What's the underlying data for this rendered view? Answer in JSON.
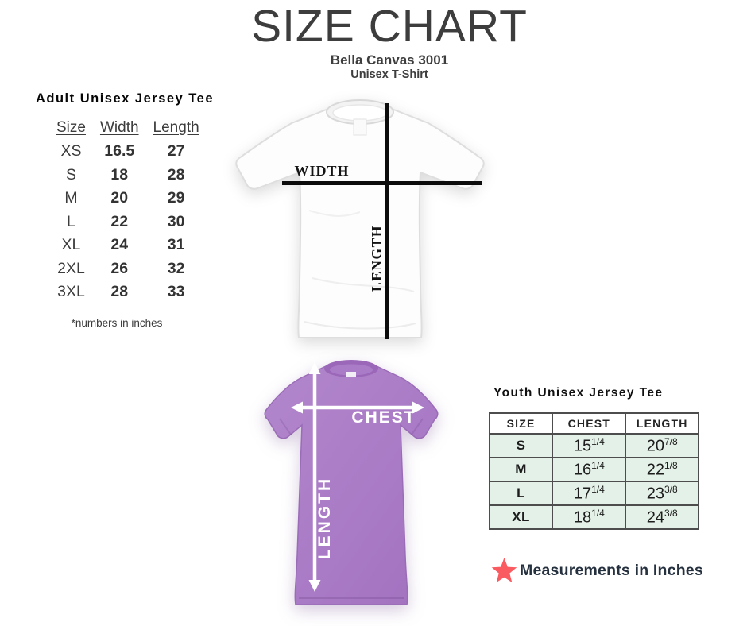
{
  "header": {
    "title": "SIZE CHART",
    "subtitle_line1": "Bella Canvas 3001",
    "subtitle_line2": "Unisex T-Shirt"
  },
  "adult_section": {
    "heading": "Adult Unisex Jersey Tee",
    "headers": [
      "Size",
      "Width",
      "Length"
    ],
    "rows": [
      {
        "size": "XS",
        "width": "16.5",
        "length": "27"
      },
      {
        "size": "S",
        "width": "18",
        "length": "28"
      },
      {
        "size": "M",
        "width": "20",
        "length": "29"
      },
      {
        "size": "L",
        "width": "22",
        "length": "30"
      },
      {
        "size": "XL",
        "width": "24",
        "length": "31"
      },
      {
        "size": "2XL",
        "width": "26",
        "length": "32"
      },
      {
        "size": "3XL",
        "width": "28",
        "length": "33"
      }
    ],
    "footnote": "*numbers in inches"
  },
  "adult_diagram": {
    "shirt": "white-adult-tee",
    "width_label": "WIDTH",
    "length_label": "LENGTH"
  },
  "youth_diagram": {
    "shirt": "purple-youth-tee",
    "chest_label": "CHEST",
    "length_label": "LENGTH"
  },
  "youth_section": {
    "heading": "Youth Unisex Jersey Tee",
    "headers": [
      "SIZE",
      "CHEST",
      "LENGTH"
    ],
    "rows": [
      {
        "size": "S",
        "chest": {
          "whole": "15",
          "frac": "1/4"
        },
        "length": {
          "whole": "20",
          "frac": "7/8"
        }
      },
      {
        "size": "M",
        "chest": {
          "whole": "16",
          "frac": "1/4"
        },
        "length": {
          "whole": "22",
          "frac": "1/8"
        }
      },
      {
        "size": "L",
        "chest": {
          "whole": "17",
          "frac": "1/4"
        },
        "length": {
          "whole": "23",
          "frac": "3/8"
        }
      },
      {
        "size": "XL",
        "chest": {
          "whole": "18",
          "frac": "1/4"
        },
        "length": {
          "whole": "24",
          "frac": "3/8"
        }
      }
    ],
    "note_icon": "star-icon",
    "note": "Measurements in Inches"
  },
  "colors": {
    "title_text": "#3d3d3d",
    "measure_line_black": "#0c0c0c",
    "purple_shirt": "#aa7bc6",
    "mint_row": "#e4f1e8",
    "table_border": "#4d4d4d",
    "star_red": "#f95b60",
    "note_text": "#263140"
  }
}
